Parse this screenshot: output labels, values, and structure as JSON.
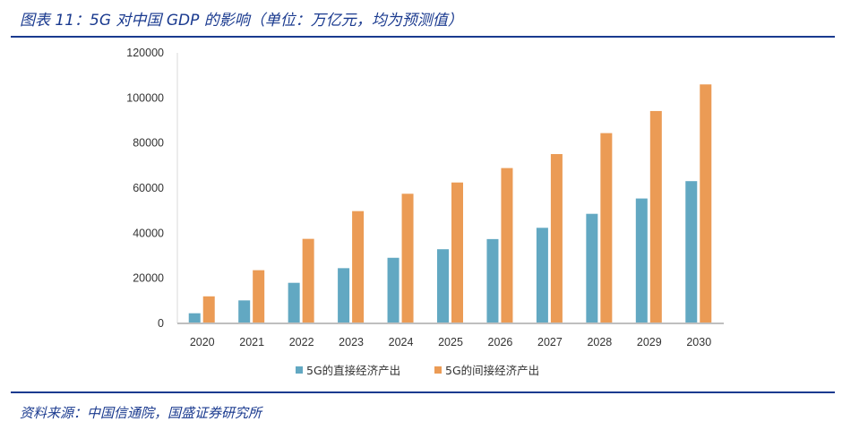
{
  "title": "图表 11：5G 对中国 GDP 的影响（单位：万亿元，均为预测值）",
  "source": "资料来源：中国信通院，国盛证券研究所",
  "chart_data": {
    "type": "bar",
    "title": "图表 11：5G 对中国 GDP 的影响（单位：万亿元，均为预测值）",
    "xlabel": "",
    "ylabel": "",
    "categories": [
      "2020",
      "2021",
      "2022",
      "2023",
      "2024",
      "2025",
      "2026",
      "2027",
      "2028",
      "2029",
      "2030"
    ],
    "series": [
      {
        "name": "5G的直接经济产出",
        "color": "#62a8c2",
        "values": [
          4500,
          10200,
          18000,
          24500,
          29100,
          32900,
          37400,
          42400,
          48600,
          55400,
          63100
        ]
      },
      {
        "name": "5G的间接经济产出",
        "color": "#eb9b55",
        "values": [
          12000,
          23600,
          37500,
          49800,
          57500,
          62500,
          68900,
          75100,
          84400,
          94200,
          106000
        ]
      }
    ],
    "ylim": [
      0,
      120000
    ],
    "yticks": [
      "0",
      "20000",
      "40000",
      "60000",
      "80000",
      "100000",
      "120000"
    ],
    "grid": false,
    "legend_position": "bottom"
  }
}
